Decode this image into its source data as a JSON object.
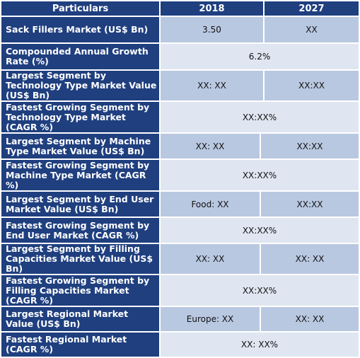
{
  "header": {
    "particulars": "Particulars",
    "year1": "2018",
    "year2": "2027"
  },
  "rows": [
    {
      "label": "Sack Fillers Market (US$ Bn)",
      "v1": "3.50",
      "v2": "XX"
    },
    {
      "label": "Compounded Annual Growth Rate (%)",
      "v": "6.2%"
    },
    {
      "label": "Largest Segment by Technology Type Market Value (US$ Bn)",
      "v1": "XX: XX",
      "v2": "XX:XX"
    },
    {
      "label": "Fastest Growing Segment by Technology Type Market (CAGR %)",
      "v": "XX:XX%"
    },
    {
      "label": "Largest Segment by Machine Type Market Value (US$ Bn)",
      "v1": "XX: XX",
      "v2": "XX:XX"
    },
    {
      "label": "Fastest Growing Segment by Machine Type Market (CAGR %)",
      "v": "XX:XX%"
    },
    {
      "label": "Largest Segment by End User Market Value (US$ Bn)",
      "v1": "Food: XX",
      "v2": "XX:XX"
    },
    {
      "label": "Fastest Growing Segment by End User Market (CAGR %)",
      "v": "XX:XX%"
    },
    {
      "label": "Largest Segment by Filling Capacities  Market Value (US$ Bn)",
      "v1": "XX: XX",
      "v2": "XX: XX"
    },
    {
      "label": "Fastest Growing Segment by Filling Capacities Market (CAGR %)",
      "v": "XX:XX%"
    },
    {
      "label": "Largest Regional Market Value (US$ Bn)",
      "v1": "Europe: XX",
      "v2": "XX: XX"
    },
    {
      "label": "Fastest Regional Market (CAGR %)",
      "v": "XX: XX%"
    }
  ]
}
